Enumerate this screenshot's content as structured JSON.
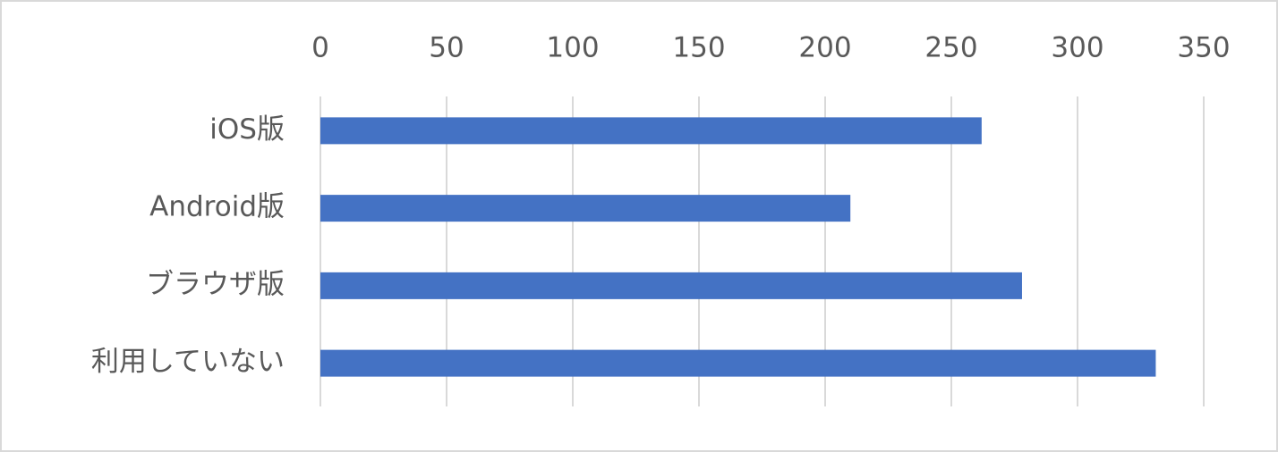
{
  "chart_data": {
    "type": "bar",
    "orientation": "horizontal",
    "categories": [
      "iOS版",
      "Android版",
      "ブラウザ版",
      "利用していない"
    ],
    "values": [
      262,
      210,
      278,
      331
    ],
    "color": "#4472c4",
    "xlim": [
      0,
      350
    ],
    "xticks": [
      0,
      50,
      100,
      150,
      200,
      250,
      300,
      350
    ],
    "grid": true
  }
}
